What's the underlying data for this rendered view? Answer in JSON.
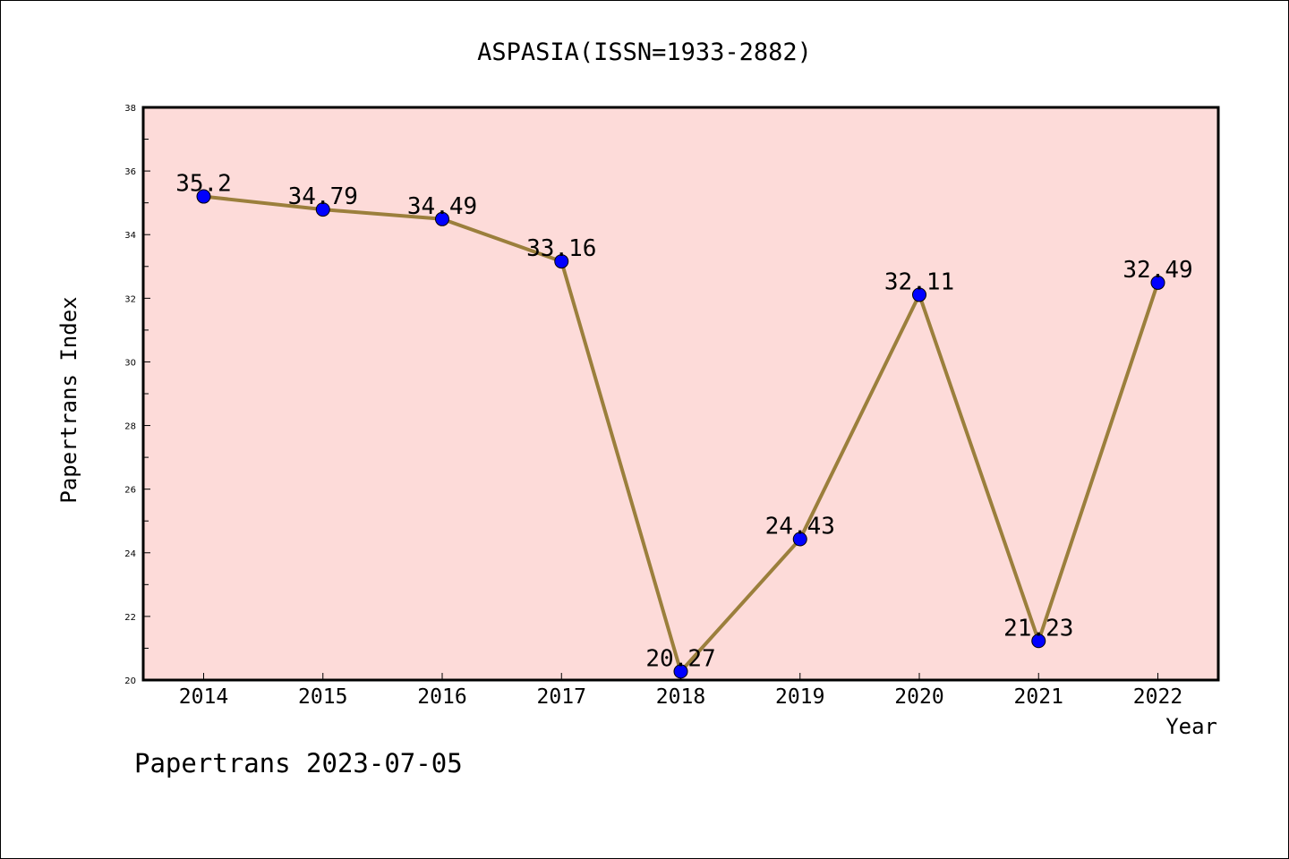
{
  "chart_data": {
    "type": "line",
    "title": "ASPASIA(ISSN=1933-2882)",
    "xlabel": "Year",
    "ylabel": "Papertrans Index",
    "categories": [
      "2014",
      "2015",
      "2016",
      "2017",
      "2018",
      "2019",
      "2020",
      "2021",
      "2022"
    ],
    "values": [
      35.2,
      34.79,
      34.49,
      33.16,
      20.27,
      24.43,
      32.11,
      21.23,
      32.49
    ],
    "value_labels": [
      "35.2",
      "34.79",
      "34.49",
      "33.16",
      "20.27",
      "24.43",
      "32.11",
      "21.23",
      "32.49"
    ],
    "ylim": [
      20,
      38
    ],
    "yticks": [
      "20",
      "22",
      "24",
      "26",
      "28",
      "30",
      "32",
      "34",
      "36",
      "38"
    ],
    "grid": false,
    "legend": "none",
    "colors": {
      "plot_background": "#fddbd9",
      "line": "#9b7f3c",
      "marker": "#0000ff"
    }
  },
  "footer": "Papertrans 2023-07-05"
}
